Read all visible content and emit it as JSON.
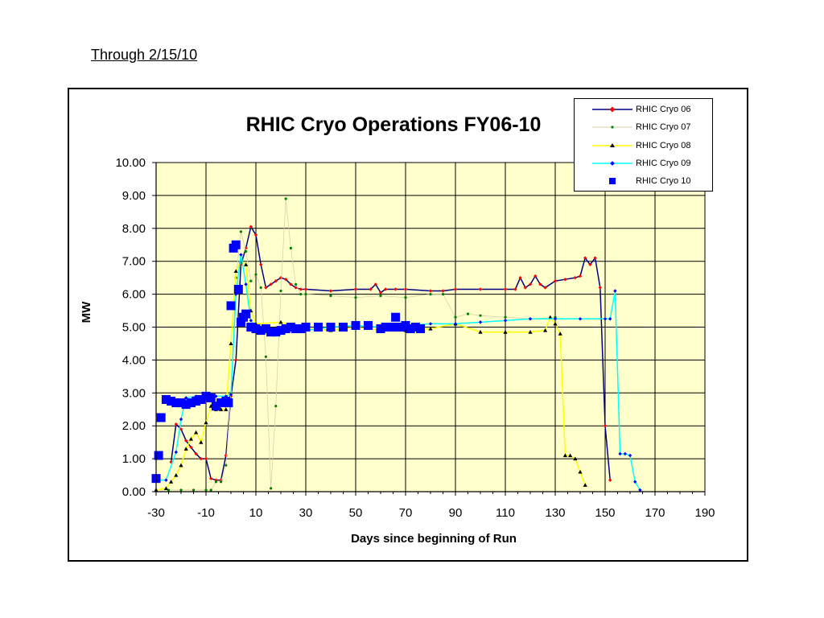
{
  "page": {
    "note": "Through 2/15/10"
  },
  "chart_data": {
    "type": "line",
    "title": "RHIC Cryo Operations FY06-10",
    "xlabel": "Days since beginning of Run",
    "ylabel": "MW",
    "xlim": [
      -30,
      190
    ],
    "ylim": [
      0,
      10
    ],
    "x_ticks": [
      "-30",
      "-10",
      "10",
      "30",
      "50",
      "70",
      "90",
      "110",
      "130",
      "150",
      "170",
      "190"
    ],
    "y_ticks": [
      "0.00",
      "1.00",
      "2.00",
      "3.00",
      "4.00",
      "5.00",
      "6.00",
      "7.00",
      "8.00",
      "9.00",
      "10.00"
    ],
    "grid": true,
    "plot_background": "#ffffcc",
    "legend_position": "top-right",
    "series": [
      {
        "name": "RHIC Cryo 06",
        "line_color": "#000080",
        "marker_color": "#ff0000",
        "marker": "diamond",
        "x": [
          -24,
          -22,
          -20,
          -18,
          -16,
          -14,
          -12,
          -10,
          -8,
          -6,
          -4,
          -2,
          0,
          2,
          4,
          6,
          8,
          10,
          12,
          14,
          16,
          18,
          20,
          22,
          24,
          26,
          28,
          30,
          40,
          50,
          56,
          58,
          60,
          62,
          66,
          70,
          80,
          85,
          90,
          100,
          110,
          114,
          116,
          118,
          120,
          122,
          124,
          126,
          130,
          134,
          138,
          140,
          142,
          144,
          146,
          148,
          150,
          152
        ],
        "y": [
          0.9,
          2.05,
          1.9,
          1.55,
          1.35,
          1.15,
          1.0,
          1.0,
          0.4,
          0.35,
          0.35,
          1.1,
          2.9,
          4.0,
          6.9,
          7.4,
          8.05,
          7.8,
          6.9,
          6.2,
          6.3,
          6.4,
          6.5,
          6.45,
          6.3,
          6.2,
          6.15,
          6.15,
          6.1,
          6.15,
          6.15,
          6.3,
          6.05,
          6.15,
          6.15,
          6.15,
          6.1,
          6.1,
          6.15,
          6.15,
          6.15,
          6.15,
          6.5,
          6.2,
          6.3,
          6.55,
          6.3,
          6.2,
          6.4,
          6.45,
          6.5,
          6.55,
          7.1,
          6.9,
          7.1,
          6.2,
          2.0,
          0.35
        ]
      },
      {
        "name": "RHIC Cryo 07",
        "line_color": "#d8d0a8",
        "marker_color": "#008000",
        "marker": "dot",
        "x": [
          -30,
          -25,
          -20,
          -15,
          -10,
          -8,
          -6,
          -4,
          -2,
          0,
          2,
          4,
          6,
          8,
          10,
          12,
          14,
          16,
          18,
          20,
          22,
          24,
          26,
          28,
          30,
          40,
          50,
          60,
          70,
          80,
          85,
          90,
          95,
          100,
          110,
          120,
          130
        ],
        "y": [
          0.05,
          0.05,
          0.05,
          0.05,
          0.05,
          0.05,
          0.3,
          0.3,
          0.8,
          3.0,
          6.5,
          7.9,
          7.3,
          6.4,
          6.6,
          6.2,
          4.1,
          0.1,
          2.6,
          6.1,
          8.9,
          7.4,
          6.3,
          6.0,
          6.0,
          5.95,
          5.9,
          5.95,
          5.9,
          6.0,
          6.0,
          5.3,
          5.4,
          5.35,
          5.3,
          5.25,
          5.3
        ]
      },
      {
        "name": "RHIC Cryo 08",
        "line_color": "#ffff00",
        "marker_color": "#000000",
        "marker": "triangle",
        "x": [
          -30,
          -26,
          -24,
          -22,
          -20,
          -18,
          -16,
          -14,
          -12,
          -10,
          -8,
          -6,
          -4,
          -2,
          0,
          2,
          4,
          6,
          8,
          10,
          20,
          30,
          40,
          50,
          60,
          70,
          80,
          90,
          100,
          110,
          120,
          126,
          128,
          130,
          132,
          134,
          136,
          138,
          140,
          142
        ],
        "y": [
          0.05,
          0.1,
          0.3,
          0.5,
          0.8,
          1.3,
          1.6,
          1.8,
          1.5,
          2.1,
          2.6,
          2.5,
          2.5,
          2.5,
          4.5,
          6.7,
          7.0,
          6.9,
          5.5,
          5.1,
          5.15,
          4.95,
          4.9,
          5.0,
          4.9,
          4.9,
          4.95,
          5.1,
          4.85,
          4.85,
          4.85,
          4.9,
          5.3,
          5.1,
          4.8,
          1.1,
          1.1,
          1.0,
          0.6,
          0.2
        ]
      },
      {
        "name": "RHIC Cryo 09",
        "line_color": "#00ffff",
        "marker_color": "#0000ff",
        "marker": "diamond",
        "x": [
          -30,
          -26,
          -22,
          -20,
          -18,
          -14,
          -10,
          -6,
          -2,
          0,
          2,
          4,
          6,
          8,
          10,
          20,
          30,
          40,
          50,
          60,
          70,
          80,
          90,
          100,
          110,
          120,
          130,
          140,
          150,
          152,
          154,
          156,
          158,
          160,
          162,
          164
        ],
        "y": [
          0.35,
          0.35,
          1.2,
          2.2,
          2.85,
          2.9,
          2.9,
          2.9,
          2.9,
          2.95,
          6.0,
          7.2,
          6.3,
          5.2,
          5.0,
          4.95,
          4.9,
          5.0,
          5.05,
          5.0,
          5.05,
          5.1,
          5.1,
          5.15,
          5.2,
          5.25,
          5.25,
          5.25,
          5.25,
          5.25,
          6.1,
          1.15,
          1.15,
          1.1,
          0.3,
          0.05
        ]
      },
      {
        "name": "RHIC Cryo 10",
        "line_color": "none",
        "marker_color": "#0000ff",
        "marker": "square",
        "x": [
          -30,
          -29,
          -28,
          -26,
          -24,
          -22,
          -20,
          -18,
          -16,
          -14,
          -12,
          -10,
          -8,
          -6,
          -4,
          -2,
          -1,
          0,
          1,
          2,
          3,
          4,
          5,
          6,
          8,
          10,
          12,
          14,
          16,
          18,
          20,
          22,
          24,
          26,
          28,
          30,
          35,
          40,
          45,
          50,
          55,
          60,
          62,
          65,
          66,
          68,
          70,
          72,
          74,
          76
        ],
        "y": [
          0.4,
          1.1,
          2.25,
          2.8,
          2.75,
          2.7,
          2.7,
          2.65,
          2.7,
          2.75,
          2.8,
          2.9,
          2.85,
          2.6,
          2.7,
          2.75,
          2.7,
          5.65,
          7.4,
          7.5,
          6.15,
          5.15,
          5.3,
          5.4,
          5.0,
          4.95,
          4.9,
          4.95,
          4.85,
          4.85,
          4.9,
          4.95,
          5.0,
          4.95,
          4.95,
          5.0,
          5.0,
          5.0,
          5.0,
          5.05,
          5.05,
          4.95,
          5.0,
          5.0,
          5.3,
          5.0,
          5.05,
          4.95,
          5.0,
          4.95
        ]
      }
    ]
  }
}
